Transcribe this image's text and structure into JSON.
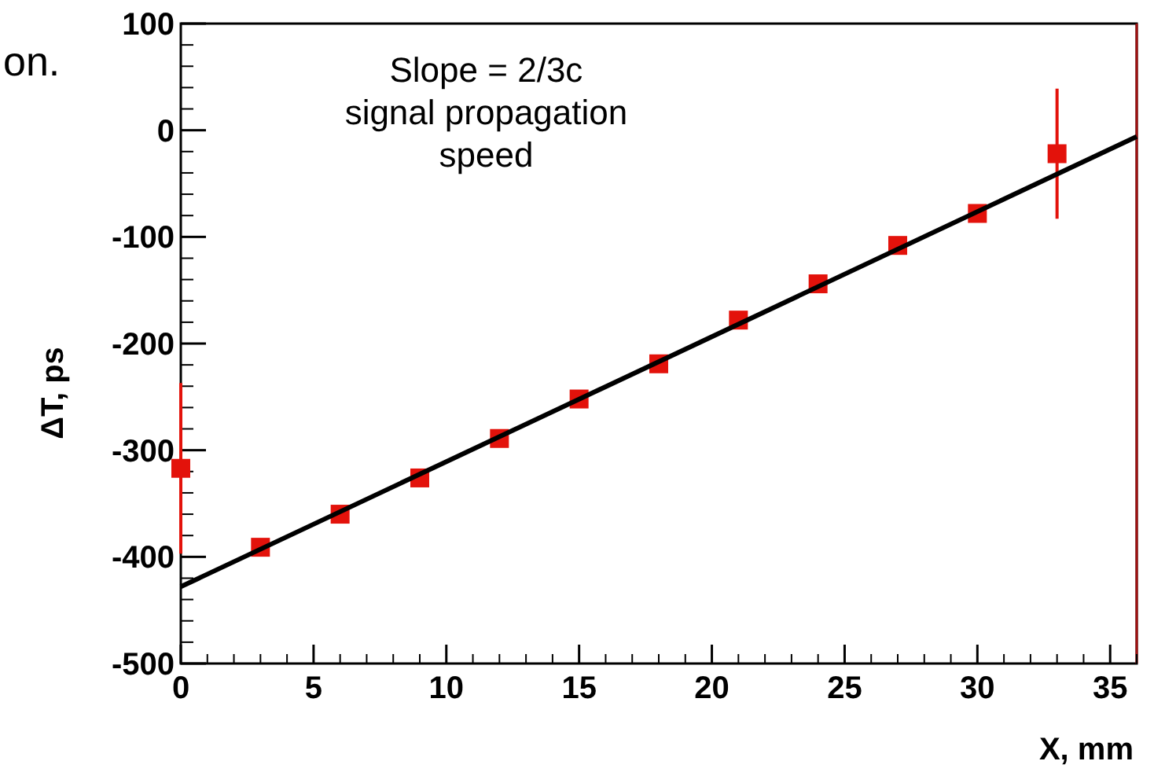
{
  "chart_data": {
    "type": "scatter",
    "xlabel": "X, mm",
    "ylabel": "ΔT, ps",
    "annotations": [
      "on.",
      "Slope = 2/3c\nsignal propagation\nspeed"
    ],
    "xlim": [
      0,
      36
    ],
    "xticks": [
      0,
      5,
      10,
      15,
      20,
      25,
      30,
      35
    ],
    "ylim": [
      -500,
      100
    ],
    "yticks": [
      -500,
      -400,
      -300,
      -200,
      -100,
      0,
      100
    ],
    "grid": false,
    "line_style": "solid",
    "series": [
      {
        "marker": "square",
        "color": "#e3120b",
        "x": [
          0,
          3,
          6,
          9,
          12,
          15,
          18,
          21,
          24,
          27,
          30,
          33
        ],
        "values": [
          -317,
          -391,
          -360,
          -326,
          -289,
          -252,
          -219,
          -178,
          -144,
          -108,
          -78,
          -22
        ],
        "errors": [
          80,
          null,
          null,
          null,
          null,
          null,
          null,
          null,
          null,
          null,
          null,
          61
        ]
      },
      {
        "type": "line",
        "marker": "none",
        "color": "#000000",
        "x": [
          0,
          36
        ],
        "values": [
          -428,
          -6
        ]
      }
    ]
  }
}
